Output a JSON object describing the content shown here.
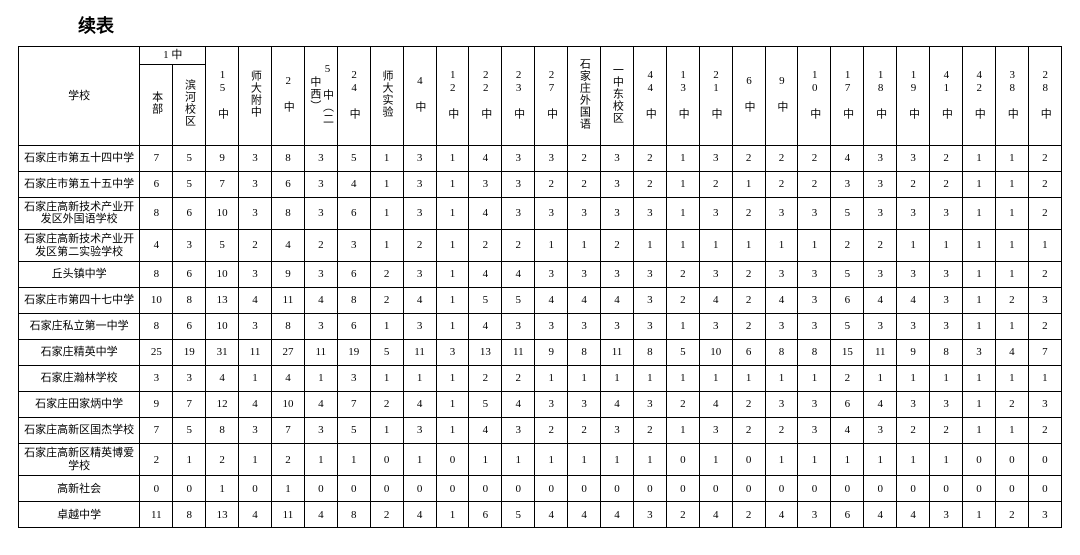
{
  "page_title": "续表",
  "header": {
    "school_label": "学校",
    "group_1zhong": "1 中",
    "sub_benbu": "本部",
    "sub_binhe": "滨河校区",
    "cols": [
      "15 中",
      "师大附中",
      "2 中",
      "5 中（二中西）",
      "24 中",
      "师大实验",
      "4 中",
      "12 中",
      "22 中",
      "23 中",
      "27 中",
      "石家庄外国语",
      "一中东校区",
      "44 中",
      "13 中",
      "21 中",
      "6 中",
      "9 中",
      "10 中",
      "17 中",
      "18 中",
      "19 中",
      "41 中",
      "42 中",
      "38 中",
      "28 中"
    ]
  },
  "rows": [
    {
      "name": "石家庄市第五十四中学",
      "v": [
        7,
        5,
        9,
        3,
        8,
        3,
        5,
        1,
        3,
        1,
        4,
        3,
        3,
        2,
        3,
        2,
        1,
        3,
        2,
        2,
        2,
        4,
        3,
        3,
        2,
        1,
        1,
        2
      ]
    },
    {
      "name": "石家庄市第五十五中学",
      "v": [
        6,
        5,
        7,
        3,
        6,
        3,
        4,
        1,
        3,
        1,
        3,
        3,
        2,
        2,
        3,
        2,
        1,
        2,
        1,
        2,
        2,
        3,
        3,
        2,
        2,
        1,
        1,
        2
      ]
    },
    {
      "name": "石家庄高新技术产业开发区外国语学校",
      "v": [
        8,
        6,
        10,
        3,
        8,
        3,
        6,
        1,
        3,
        1,
        4,
        3,
        3,
        3,
        3,
        3,
        1,
        3,
        2,
        3,
        3,
        5,
        3,
        3,
        3,
        1,
        1,
        2
      ],
      "tall": true
    },
    {
      "name": "石家庄高新技术产业开发区第二实验学校",
      "v": [
        4,
        3,
        5,
        2,
        4,
        2,
        3,
        1,
        2,
        1,
        2,
        2,
        1,
        1,
        2,
        1,
        1,
        1,
        1,
        1,
        1,
        2,
        2,
        1,
        1,
        1,
        1,
        1
      ],
      "tall": true
    },
    {
      "name": "丘头镇中学",
      "v": [
        8,
        6,
        10,
        3,
        9,
        3,
        6,
        2,
        3,
        1,
        4,
        4,
        3,
        3,
        3,
        3,
        2,
        3,
        2,
        3,
        3,
        5,
        3,
        3,
        3,
        1,
        1,
        2
      ]
    },
    {
      "name": "石家庄市第四十七中学",
      "v": [
        10,
        8,
        13,
        4,
        11,
        4,
        8,
        2,
        4,
        1,
        5,
        5,
        4,
        4,
        4,
        3,
        2,
        4,
        2,
        4,
        3,
        6,
        4,
        4,
        3,
        1,
        2,
        3
      ]
    },
    {
      "name": "石家庄私立第一中学",
      "v": [
        8,
        6,
        10,
        3,
        8,
        3,
        6,
        1,
        3,
        1,
        4,
        3,
        3,
        3,
        3,
        3,
        1,
        3,
        2,
        3,
        3,
        5,
        3,
        3,
        3,
        1,
        1,
        2
      ]
    },
    {
      "name": "石家庄精英中学",
      "v": [
        25,
        19,
        31,
        11,
        27,
        11,
        19,
        5,
        11,
        3,
        13,
        11,
        9,
        8,
        11,
        8,
        5,
        10,
        6,
        8,
        8,
        15,
        11,
        9,
        8,
        3,
        4,
        7
      ]
    },
    {
      "name": "石家庄瀚林学校",
      "v": [
        3,
        3,
        4,
        1,
        4,
        1,
        3,
        1,
        1,
        1,
        2,
        2,
        1,
        1,
        1,
        1,
        1,
        1,
        1,
        1,
        1,
        2,
        1,
        1,
        1,
        1,
        1,
        1
      ]
    },
    {
      "name": "石家庄田家炳中学",
      "v": [
        9,
        7,
        12,
        4,
        10,
        4,
        7,
        2,
        4,
        1,
        5,
        4,
        3,
        3,
        4,
        3,
        2,
        4,
        2,
        3,
        3,
        6,
        4,
        3,
        3,
        1,
        2,
        3
      ]
    },
    {
      "name": "石家庄高新区国杰学校",
      "v": [
        7,
        5,
        8,
        3,
        7,
        3,
        5,
        1,
        3,
        1,
        4,
        3,
        2,
        2,
        3,
        2,
        1,
        3,
        2,
        2,
        3,
        4,
        3,
        2,
        2,
        1,
        1,
        2
      ]
    },
    {
      "name": "石家庄高新区精英博爱学校",
      "v": [
        2,
        1,
        2,
        1,
        2,
        1,
        1,
        0,
        1,
        0,
        1,
        1,
        1,
        1,
        1,
        1,
        0,
        1,
        0,
        1,
        1,
        1,
        1,
        1,
        1,
        0,
        0,
        0
      ],
      "tall": true
    },
    {
      "name": "高新社会",
      "v": [
        0,
        0,
        1,
        0,
        1,
        0,
        0,
        0,
        0,
        0,
        0,
        0,
        0,
        0,
        0,
        0,
        0,
        0,
        0,
        0,
        0,
        0,
        0,
        0,
        0,
        0,
        0,
        0
      ]
    },
    {
      "name": "卓越中学",
      "v": [
        11,
        8,
        13,
        4,
        11,
        4,
        8,
        2,
        4,
        1,
        6,
        5,
        4,
        4,
        4,
        3,
        2,
        4,
        2,
        4,
        3,
        6,
        4,
        4,
        3,
        1,
        2,
        3
      ]
    }
  ]
}
